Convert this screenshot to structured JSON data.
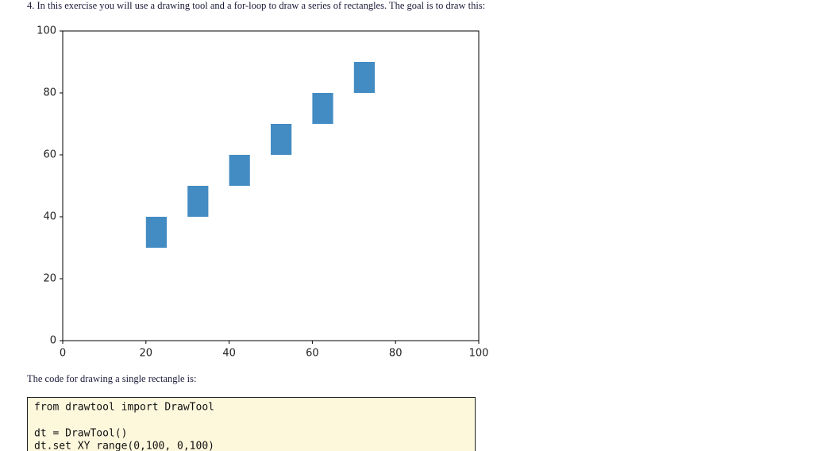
{
  "intro": "4. In this exercise you will use a drawing tool and a for-loop to draw a series of rectangles. The goal is to draw this:",
  "chart_data": {
    "type": "rectangles",
    "color": "#438bc3",
    "xlim": [
      0,
      100
    ],
    "ylim": [
      0,
      100
    ],
    "xticks": [
      0,
      20,
      40,
      60,
      80,
      100
    ],
    "yticks": [
      0,
      20,
      40,
      60,
      80,
      100
    ],
    "rectangles": [
      {
        "x": 20,
        "y": 30,
        "width": 5,
        "height": 10
      },
      {
        "x": 30,
        "y": 40,
        "width": 5,
        "height": 10
      },
      {
        "x": 40,
        "y": 50,
        "width": 5,
        "height": 10
      },
      {
        "x": 50,
        "y": 60,
        "width": 5,
        "height": 10
      },
      {
        "x": 60,
        "y": 70,
        "width": 5,
        "height": 10
      },
      {
        "x": 70,
        "y": 80,
        "width": 5,
        "height": 10
      }
    ]
  },
  "caption": "The code for drawing a single rectangle is:",
  "code": [
    "from drawtool import DrawTool",
    "dt = DrawTool()",
    "dt.set_XY_range(0,100, 0,100)"
  ]
}
